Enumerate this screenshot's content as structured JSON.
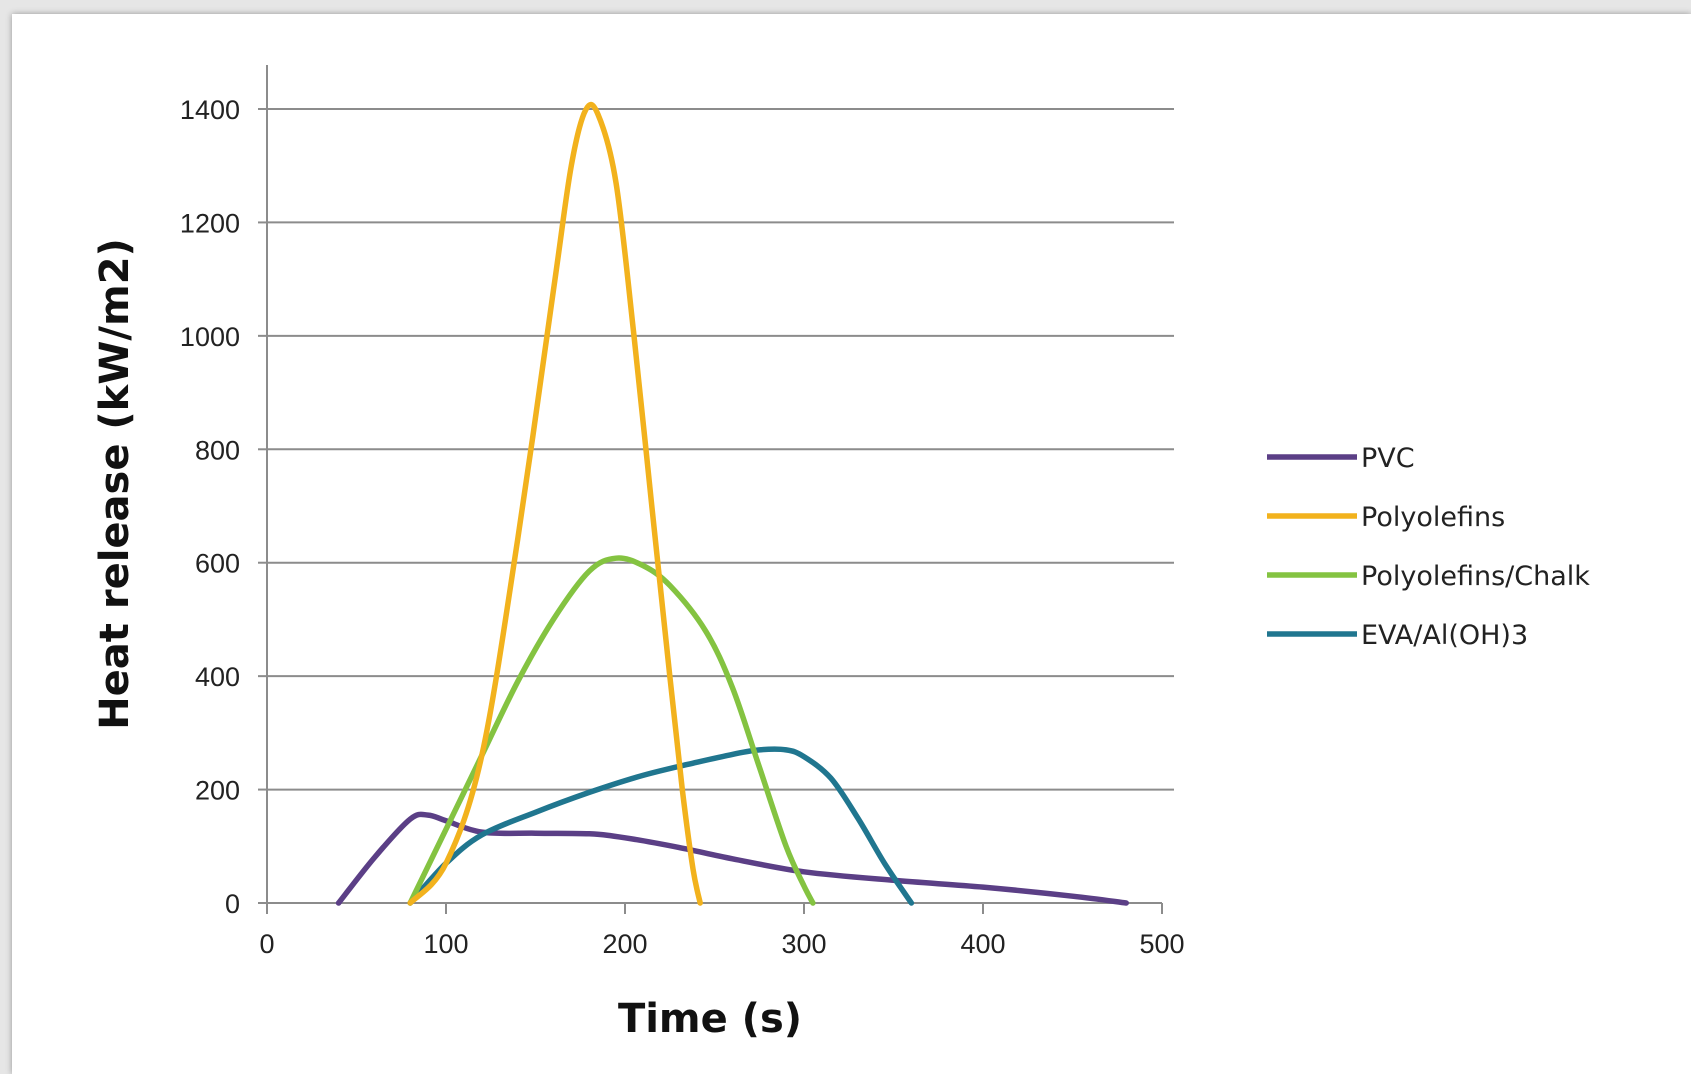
{
  "chart_data": {
    "type": "line",
    "xlabel": "Time (s)",
    "ylabel": "Heat release (kW/m2)",
    "xlim": [
      0,
      500
    ],
    "ylim": [
      0,
      1400
    ],
    "x_ticks": [
      0,
      100,
      200,
      300,
      400,
      500
    ],
    "y_ticks": [
      0,
      200,
      400,
      600,
      800,
      1000,
      1200,
      1400
    ],
    "grid": "horizontal",
    "legend": "right",
    "series": [
      {
        "name": "PVC",
        "color": "#5b3f86",
        "points": [
          [
            40,
            0
          ],
          [
            60,
            80
          ],
          [
            80,
            148
          ],
          [
            90,
            155
          ],
          [
            100,
            145
          ],
          [
            120,
            125
          ],
          [
            150,
            123
          ],
          [
            180,
            122
          ],
          [
            200,
            115
          ],
          [
            230,
            98
          ],
          [
            260,
            78
          ],
          [
            300,
            55
          ],
          [
            350,
            40
          ],
          [
            400,
            28
          ],
          [
            450,
            12
          ],
          [
            480,
            0
          ]
        ]
      },
      {
        "name": "Polyolefins",
        "color": "#f2b21d",
        "points": [
          [
            80,
            0
          ],
          [
            100,
            70
          ],
          [
            120,
            260
          ],
          [
            140,
            640
          ],
          [
            160,
            1080
          ],
          [
            170,
            1300
          ],
          [
            178,
            1398
          ],
          [
            185,
            1390
          ],
          [
            195,
            1270
          ],
          [
            205,
            1000
          ],
          [
            215,
            700
          ],
          [
            225,
            400
          ],
          [
            232,
            200
          ],
          [
            238,
            60
          ],
          [
            242,
            0
          ]
        ]
      },
      {
        "name": "Polyolefins/Chalk",
        "color": "#84c341",
        "points": [
          [
            80,
            0
          ],
          [
            100,
            130
          ],
          [
            120,
            260
          ],
          [
            140,
            390
          ],
          [
            160,
            500
          ],
          [
            180,
            585
          ],
          [
            195,
            608
          ],
          [
            210,
            595
          ],
          [
            225,
            560
          ],
          [
            245,
            480
          ],
          [
            260,
            380
          ],
          [
            275,
            240
          ],
          [
            290,
            100
          ],
          [
            300,
            30
          ],
          [
            305,
            0
          ]
        ]
      },
      {
        "name": "EVA/Al(OH)3",
        "color": "#20768f",
        "points": [
          [
            80,
            0
          ],
          [
            100,
            70
          ],
          [
            120,
            120
          ],
          [
            150,
            160
          ],
          [
            180,
            195
          ],
          [
            210,
            225
          ],
          [
            240,
            248
          ],
          [
            260,
            262
          ],
          [
            275,
            270
          ],
          [
            290,
            270
          ],
          [
            300,
            258
          ],
          [
            315,
            220
          ],
          [
            330,
            150
          ],
          [
            345,
            70
          ],
          [
            360,
            0
          ]
        ]
      }
    ]
  },
  "legend": {
    "items": [
      "PVC",
      "Polyolefins",
      "Polyolefins/Chalk",
      "EVA/Al(OH)3"
    ]
  }
}
